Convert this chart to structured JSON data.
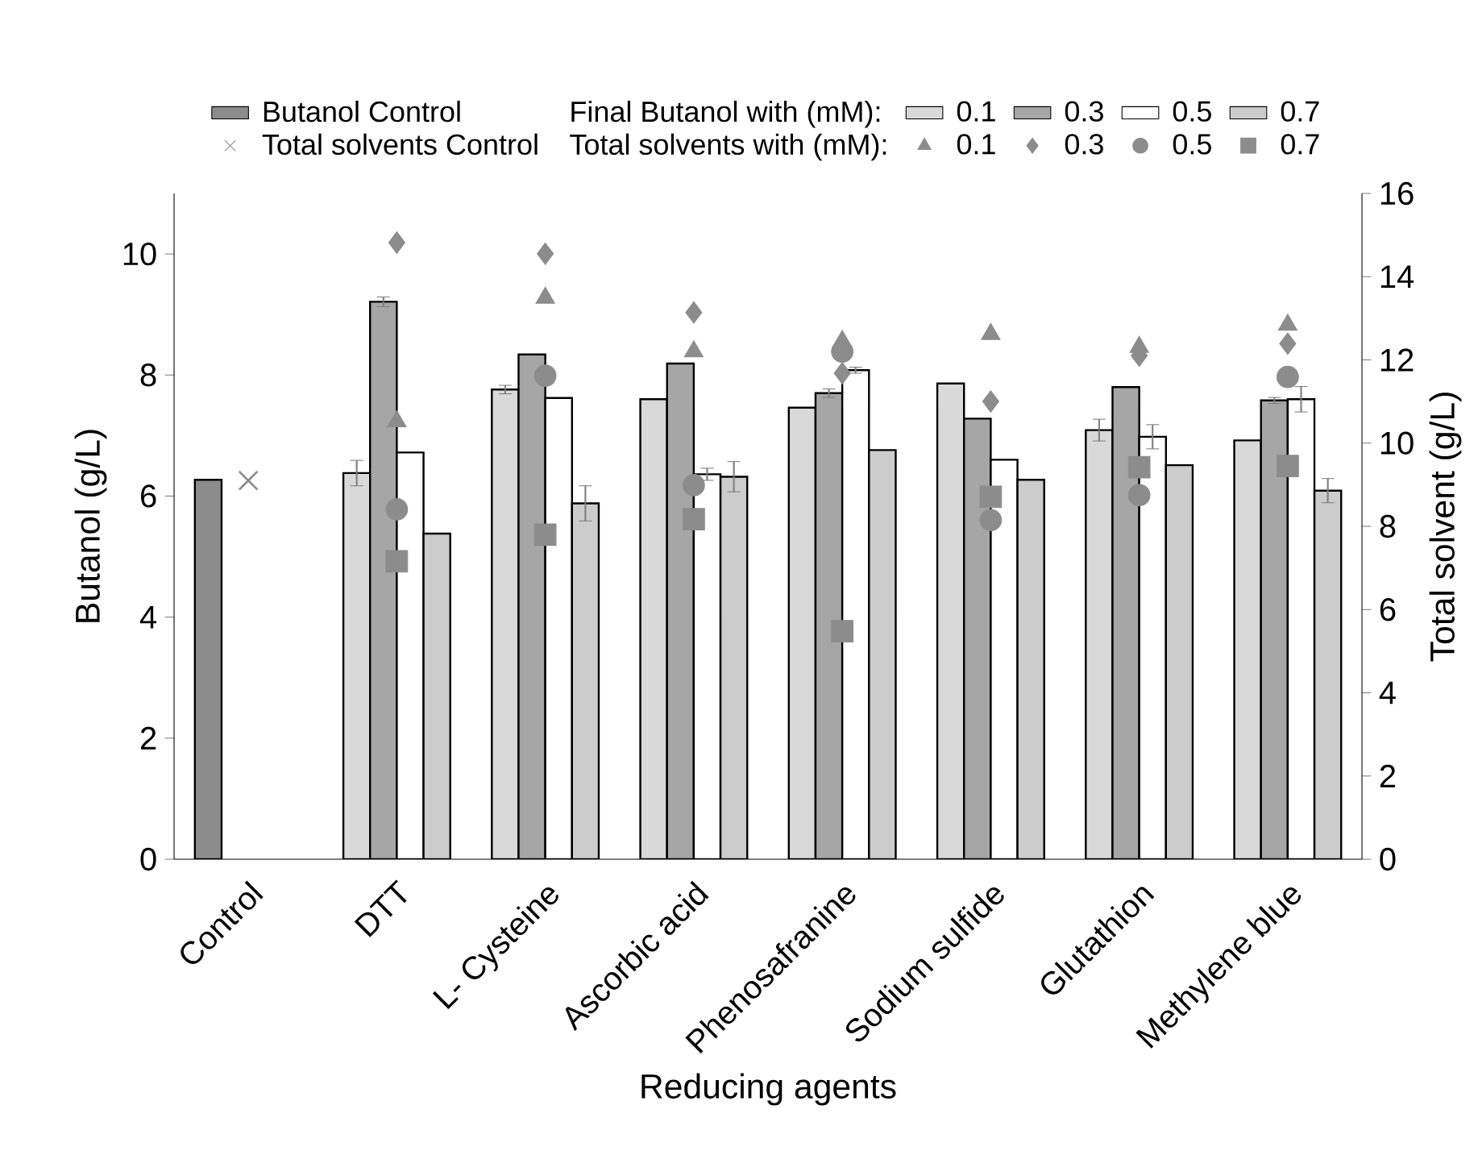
{
  "chart_data": {
    "type": "bar",
    "xlabel": "Reducing agents",
    "ylabel": "Butanol (g/L)",
    "y2label": "Total solvent (g/L)",
    "categories": [
      "Control",
      "DTT",
      "L- Cysteine",
      "Ascorbic acid",
      "Phenosafranine",
      "Sodium sulfide",
      "Glutathion",
      "Methylene blue"
    ],
    "ylim": [
      0,
      11
    ],
    "yticks": [
      0,
      2,
      4,
      6,
      8,
      10
    ],
    "y2lim": [
      0,
      16
    ],
    "y2ticks": [
      0,
      2,
      4,
      6,
      8,
      10,
      12,
      14,
      16
    ],
    "legend": "top",
    "annotations": [
      "Final Butanol with (mM):",
      "Total solvents with  (mM):"
    ],
    "series": [
      {
        "name": "Butanol Control",
        "color": "#8c8c8c",
        "values": [
          6.27,
          null,
          null,
          null,
          null,
          null,
          null,
          null
        ]
      },
      {
        "name": "0.1",
        "color": "#d9d9d9",
        "values": [
          null,
          6.38,
          7.76,
          7.6,
          7.46,
          7.86,
          7.09,
          6.92
        ],
        "errors": [
          null,
          0.21,
          0.07,
          null,
          null,
          null,
          0.18,
          null
        ]
      },
      {
        "name": "0.3",
        "color": "#a6a6a6",
        "values": [
          null,
          9.21,
          8.34,
          8.19,
          7.7,
          7.28,
          7.8,
          7.58
        ],
        "errors": [
          null,
          0.08,
          null,
          null,
          0.07,
          null,
          null,
          0.05
        ]
      },
      {
        "name": "0.5",
        "color": "#ffffff",
        "values": [
          null,
          6.72,
          7.62,
          6.36,
          8.08,
          6.6,
          6.98,
          7.6
        ],
        "errors": [
          null,
          null,
          null,
          0.1,
          0.05,
          null,
          0.2,
          0.21
        ]
      },
      {
        "name": "0.7",
        "color": "#cccccc",
        "values": [
          null,
          5.38,
          5.88,
          6.32,
          6.76,
          6.27,
          6.51,
          6.09
        ],
        "errors": [
          null,
          null,
          0.29,
          0.25,
          null,
          null,
          null,
          0.2
        ]
      },
      {
        "name": "Total solvents Control",
        "type": "scatter",
        "axis": "y2",
        "marker": "cross",
        "color": "#8c8c8c",
        "values": [
          9.1,
          null,
          null,
          null,
          null,
          null,
          null,
          null
        ]
      },
      {
        "name": "0.1",
        "type": "scatter",
        "axis": "y2",
        "marker": "triangle",
        "color": "#8c8c8c",
        "values": [
          null,
          10.52,
          13.49,
          12.2,
          12.45,
          12.62,
          12.31,
          12.84
        ]
      },
      {
        "name": "0.3",
        "type": "scatter",
        "axis": "y2",
        "marker": "diamond",
        "color": "#8c8c8c",
        "values": [
          null,
          14.82,
          14.55,
          13.14,
          11.68,
          11.0,
          12.1,
          12.39
        ]
      },
      {
        "name": "0.5",
        "type": "scatter",
        "axis": "y2",
        "marker": "circle",
        "color": "#8c8c8c",
        "values": [
          null,
          8.41,
          11.62,
          8.99,
          12.2,
          8.15,
          8.75,
          11.59
        ]
      },
      {
        "name": "0.7",
        "type": "scatter",
        "axis": "y2",
        "marker": "square",
        "color": "#8c8c8c",
        "values": [
          null,
          7.16,
          7.8,
          8.17,
          5.48,
          8.71,
          9.42,
          9.45
        ]
      }
    ]
  }
}
